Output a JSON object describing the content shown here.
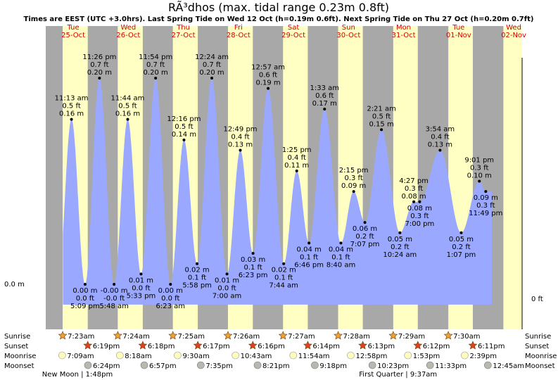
{
  "title": "RÃ³dhos (max. tidal range 0.23m 0.8ft)",
  "subtitle": "Times are EEST (UTC +3.0hrs). Last Spring Tide on Wed 12 Oct (h=0.19m 0.6ft). Next Spring Tide on Thu 27 Oct (h=0.20m 0.7ft)",
  "axis_left_label": "0.0 m",
  "axis_right_label": "0 ft",
  "row_labels": {
    "sunrise": "Sunrise",
    "sunset": "Sunset",
    "moonrise": "Moonrise",
    "moonset": "Moonset"
  },
  "days": [
    {
      "name": "Tue",
      "date": "25-Oct"
    },
    {
      "name": "Wed",
      "date": "26-Oct"
    },
    {
      "name": "Thu",
      "date": "27-Oct"
    },
    {
      "name": "Fri",
      "date": "28-Oct"
    },
    {
      "name": "Sat",
      "date": "29-Oct"
    },
    {
      "name": "Sun",
      "date": "30-Oct"
    },
    {
      "name": "Mon",
      "date": "31-Oct"
    },
    {
      "name": "Tue",
      "date": "01-Nov"
    },
    {
      "name": "Wed",
      "date": "02-Nov"
    }
  ],
  "chart_data": {
    "type": "area",
    "title": "RÃ³dhos (max. tidal range 0.23m 0.8ft)",
    "x_unit": "hours from 00:00 Tue 25-Oct",
    "ylim_m": [
      -0.07,
      0.27
    ],
    "colors": {
      "day": "#ffffc4",
      "night": "#a8a8a8",
      "water": "#9aa8ff"
    },
    "daylight": [
      {
        "sunrise": "7:23am",
        "sunset": "6:19pm"
      },
      {
        "sunrise": "7:24am",
        "sunset": "6:18pm"
      },
      {
        "sunrise": "7:25am",
        "sunset": "6:17pm"
      },
      {
        "sunrise": "7:26am",
        "sunset": "6:16pm"
      },
      {
        "sunrise": "7:27am",
        "sunset": "6:14pm"
      },
      {
        "sunrise": "7:28am",
        "sunset": "6:13pm"
      },
      {
        "sunrise": "7:29am",
        "sunset": "6:12pm"
      },
      {
        "sunrise": "7:30am",
        "sunset": "6:11pm"
      }
    ],
    "tides": [
      {
        "x": 11.22,
        "h": 0.16,
        "time": "11:13 am",
        "ft": "0.5 ft",
        "m": "0.16 m",
        "high": true
      },
      {
        "x": 17.15,
        "h": 0.0,
        "time": "5:09 pm",
        "ft": "0.0 ft",
        "m": "0.00 m",
        "high": false
      },
      {
        "x": 23.43,
        "h": 0.2,
        "time": "11:26 pm",
        "ft": "0.7 ft",
        "m": "0.20 m",
        "high": true
      },
      {
        "x": 29.8,
        "h": -0.0,
        "time": "5:48 am",
        "ft": "-0.0 ft",
        "m": "-0.00 m",
        "high": false
      },
      {
        "x": 35.73,
        "h": 0.16,
        "time": "11:44 am",
        "ft": "0.5 ft",
        "m": "0.16 m",
        "high": true
      },
      {
        "x": 41.55,
        "h": 0.01,
        "time": "5:33 pm",
        "ft": "0.0 ft",
        "m": "0.01 m",
        "high": false
      },
      {
        "x": 47.9,
        "h": 0.2,
        "time": "11:54 pm",
        "ft": "0.7 ft",
        "m": "0.20 m",
        "high": true
      },
      {
        "x": 54.38,
        "h": 0.0,
        "time": "6:23 am",
        "ft": "0.0 ft",
        "m": "0.00 m",
        "high": false
      },
      {
        "x": 60.27,
        "h": 0.14,
        "time": "12:16 pm",
        "ft": "0.5 ft",
        "m": "0.14 m",
        "high": true
      },
      {
        "x": 65.97,
        "h": 0.02,
        "time": "5:58 pm",
        "ft": "0.1 ft",
        "m": "0.02 m",
        "high": false
      },
      {
        "x": 72.4,
        "h": 0.2,
        "time": "12:24 am",
        "ft": "0.7 ft",
        "m": "0.20 m",
        "high": true
      },
      {
        "x": 79.0,
        "h": 0.01,
        "time": "7:00 am",
        "ft": "0.0 ft",
        "m": "0.01 m",
        "high": false
      },
      {
        "x": 84.82,
        "h": 0.13,
        "time": "12:49 pm",
        "ft": "0.4 ft",
        "m": "0.13 m",
        "high": true
      },
      {
        "x": 90.38,
        "h": 0.03,
        "time": "6:23 pm",
        "ft": "0.1 ft",
        "m": "0.03 m",
        "high": false
      },
      {
        "x": 96.95,
        "h": 0.19,
        "time": "12:57 am",
        "ft": "0.6 ft",
        "m": "0.19 m",
        "high": true
      },
      {
        "x": 103.73,
        "h": 0.02,
        "time": "7:44 am",
        "ft": "0.1 ft",
        "m": "0.02 m",
        "high": false
      },
      {
        "x": 109.42,
        "h": 0.11,
        "time": "1:25 pm",
        "ft": "0.4 ft",
        "m": "0.11 m",
        "high": true
      },
      {
        "x": 114.77,
        "h": 0.04,
        "time": "6:46 pm",
        "ft": "0.1 ft",
        "m": "0.04 m",
        "high": false
      },
      {
        "x": 121.55,
        "h": 0.17,
        "time": "1:33 am",
        "ft": "0.6 ft",
        "m": "0.17 m",
        "high": true
      },
      {
        "x": 128.67,
        "h": 0.04,
        "time": "8:40 am",
        "ft": "0.1 ft",
        "m": "0.04 m",
        "high": false
      },
      {
        "x": 134.25,
        "h": 0.09,
        "time": "2:15 pm",
        "ft": "0.3 ft",
        "m": "0.09 m",
        "high": true
      },
      {
        "x": 139.12,
        "h": 0.06,
        "time": "7:07 pm",
        "ft": "0.2 ft",
        "m": "0.06 m",
        "high": false
      },
      {
        "x": 146.35,
        "h": 0.15,
        "time": "2:21 am",
        "ft": "0.5 ft",
        "m": "0.15 m",
        "high": true
      },
      {
        "x": 154.4,
        "h": 0.05,
        "time": "10:24 am",
        "ft": "0.2 ft",
        "m": "0.05 m",
        "high": false
      },
      {
        "x": 160.45,
        "h": 0.08,
        "time": "4:27 pm",
        "ft": "0.3 ft",
        "m": "0.08 m",
        "high": true
      },
      {
        "x": 163.0,
        "h": 0.08,
        "time": "7:00 pm",
        "ft": "0.3 ft",
        "m": "0.08 m",
        "high": false
      },
      {
        "x": 171.9,
        "h": 0.13,
        "time": "3:54 am",
        "ft": "0.4 ft",
        "m": "0.13 m",
        "high": true
      },
      {
        "x": 181.12,
        "h": 0.05,
        "time": "1:07 pm",
        "ft": "0.2 ft",
        "m": "0.05 m",
        "high": false
      },
      {
        "x": 189.02,
        "h": 0.1,
        "time": "9:01 pm",
        "ft": "0.3 ft",
        "m": "0.10 m",
        "high": true
      },
      {
        "x": 191.82,
        "h": 0.09,
        "time": "11:49 pm",
        "ft": "0.3 ft",
        "m": "0.09 m",
        "high": false
      }
    ],
    "moonrise": [
      "7:09am",
      "8:18am",
      "9:30am",
      "10:43am",
      "11:54am",
      "12:58pm",
      "1:53pm",
      "2:39pm"
    ],
    "moonset": [
      "6:24pm",
      "6:57pm",
      "7:35pm",
      "8:21pm",
      "9:18pm",
      "10:23pm",
      "11:33pm",
      "12:45am"
    ],
    "moon_phases": [
      {
        "label": "New Moon | 1:48pm",
        "x": 13.8
      },
      {
        "label": "First Quarter | 9:37am",
        "x": 153.6
      }
    ]
  }
}
